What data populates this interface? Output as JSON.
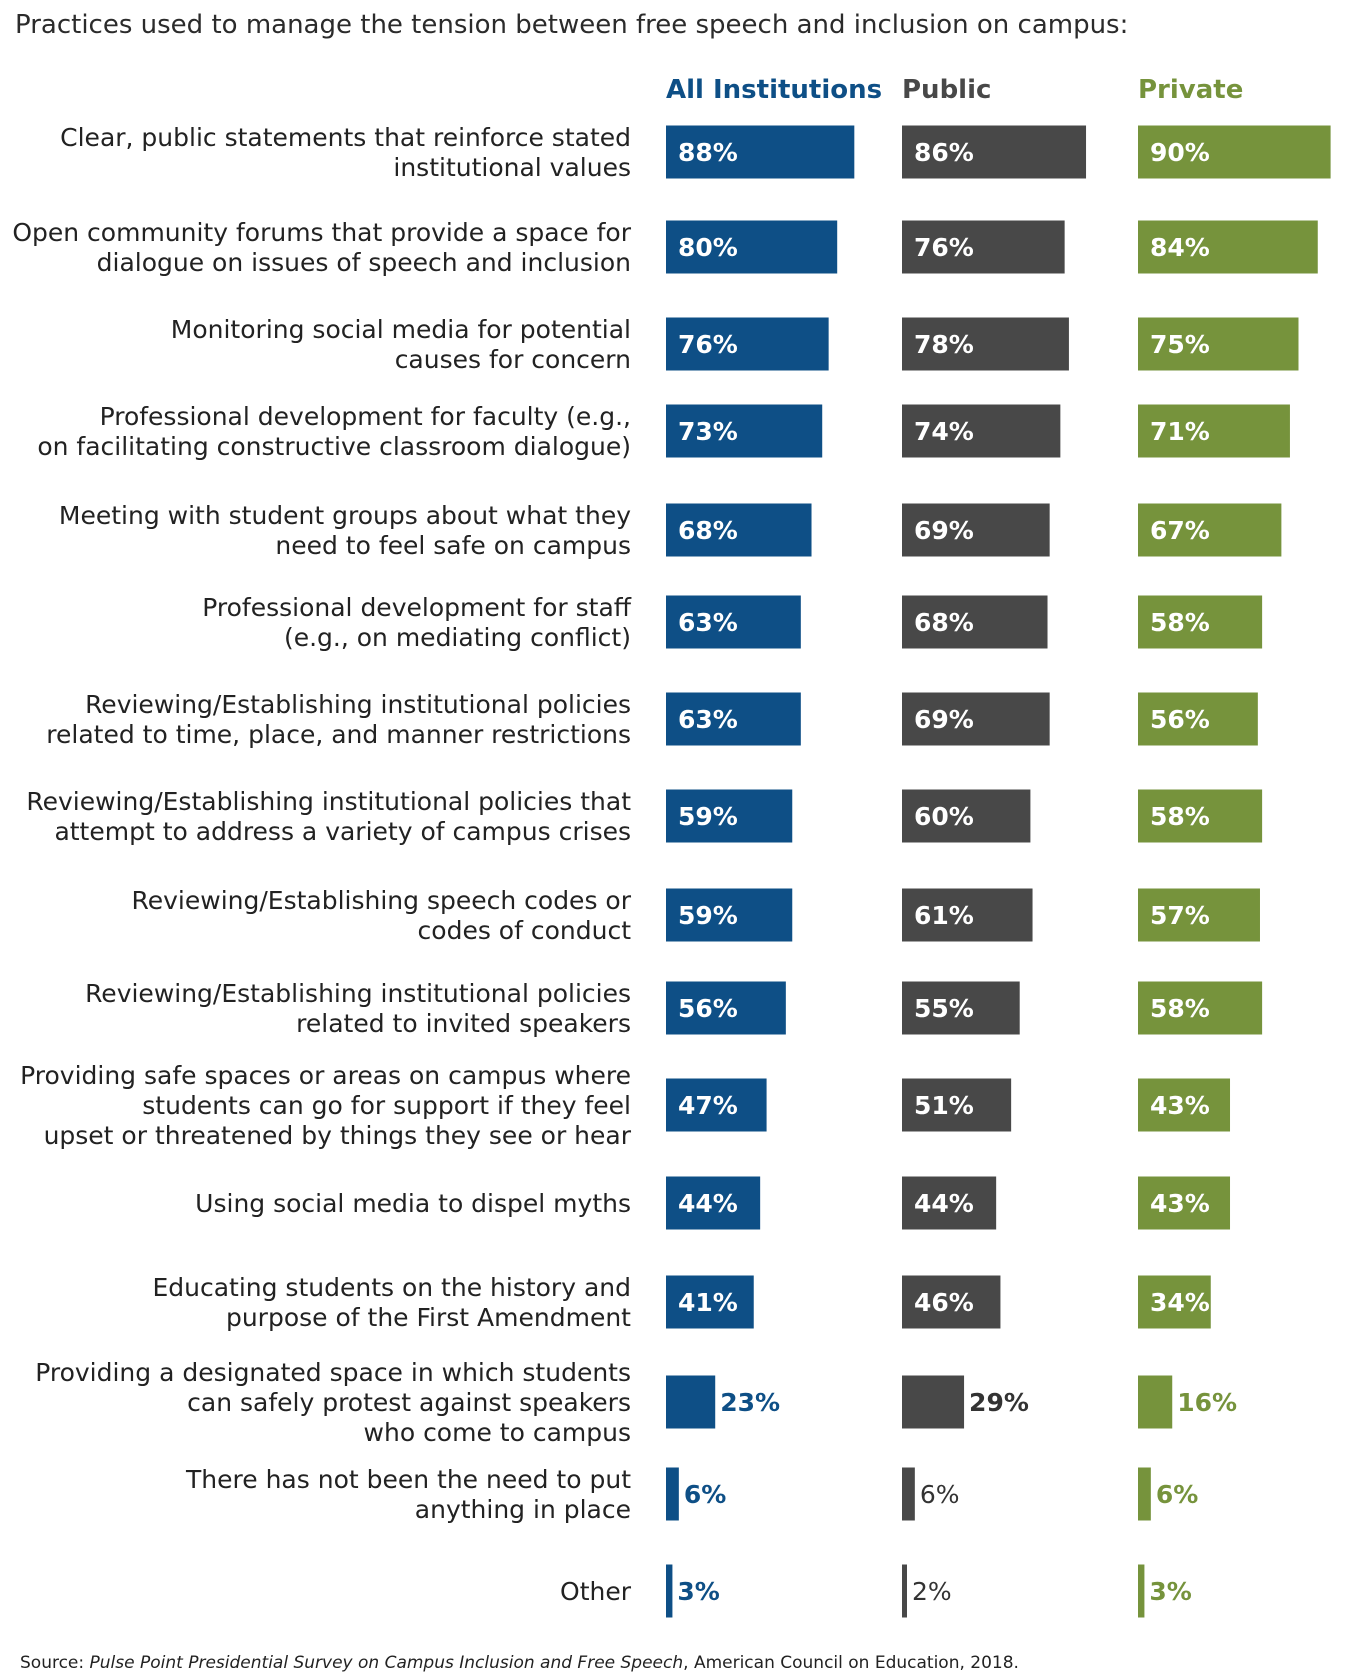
{
  "chart_data": {
    "type": "bar",
    "orientation": "horizontal",
    "title": "Practices used to manage the tension between free speech and inclusion on campus:",
    "value_format": "{v}%",
    "categories": [
      [
        "Clear, public statements that reinforce stated",
        "institutional values"
      ],
      [
        "Open community forums that provide a space for",
        "dialogue on issues of speech and inclusion"
      ],
      [
        "Monitoring social media for potential",
        "causes for concern"
      ],
      [
        "Professional development for faculty (e.g.,",
        "on facilitating constructive classroom dialogue)"
      ],
      [
        "Meeting with student groups about what they",
        "need to feel safe on campus"
      ],
      [
        "Professional development for staff",
        "(e.g., on mediating conflict)"
      ],
      [
        "Reviewing/Establishing institutional policies",
        "related to time, place, and manner restrictions"
      ],
      [
        "Reviewing/Establishing institutional policies that",
        "attempt to address a variety of campus crises"
      ],
      [
        "Reviewing/Establishing speech codes or",
        "codes of conduct"
      ],
      [
        "Reviewing/Establishing institutional policies",
        "related to invited speakers"
      ],
      [
        "Providing safe spaces or areas on campus where",
        "students can go for support if they feel",
        "upset or threatened by things they see or hear"
      ],
      [
        "Using social media to dispel myths"
      ],
      [
        "Educating students on the history and",
        "purpose of the First Amendment"
      ],
      [
        "Providing a designated space in which students",
        "can safely protest against speakers",
        "who come to campus"
      ],
      [
        "There has not been the need to put",
        "anything in place"
      ],
      [
        "Other"
      ]
    ],
    "series": [
      {
        "name": "All Institutions",
        "color": "#0e4f86",
        "values": [
          88,
          80,
          76,
          73,
          68,
          63,
          63,
          59,
          59,
          56,
          47,
          44,
          41,
          23,
          6,
          3
        ]
      },
      {
        "name": "Public",
        "color": "#484848",
        "values": [
          86,
          76,
          78,
          74,
          69,
          68,
          69,
          60,
          61,
          55,
          51,
          44,
          46,
          29,
          6,
          2
        ]
      },
      {
        "name": "Private",
        "color": "#76933c",
        "values": [
          90,
          84,
          75,
          71,
          67,
          58,
          56,
          58,
          57,
          58,
          43,
          43,
          34,
          16,
          6,
          3
        ]
      }
    ],
    "xlim": [
      0,
      100
    ],
    "legend": "top",
    "grid": false
  },
  "source": {
    "prefix": "Source: ",
    "italic": "Pulse Point Presidential Survey on Campus Inclusion and Free Speech",
    "suffix": ", American Council on Education, 2018."
  }
}
